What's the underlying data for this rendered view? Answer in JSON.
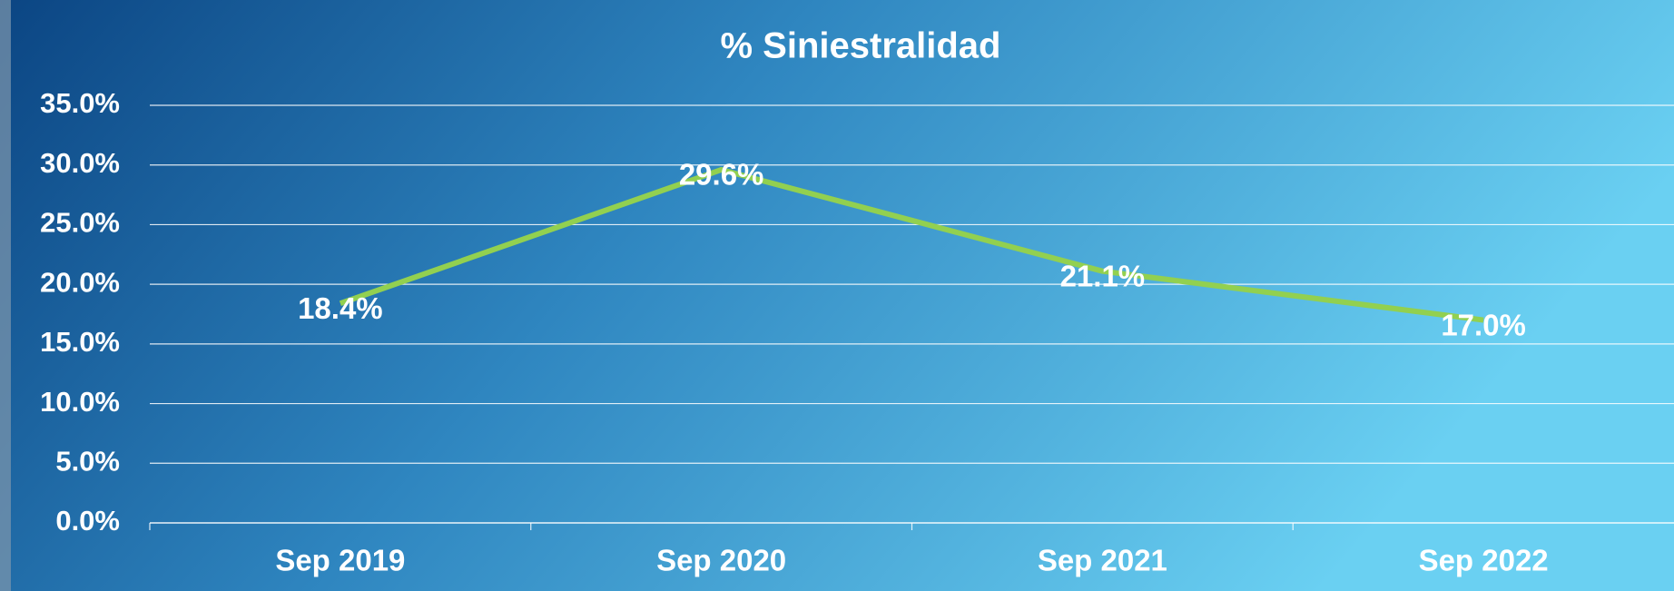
{
  "chart_data": {
    "type": "line",
    "title": "% Siniestralidad",
    "categories": [
      "Sep 2019",
      "Sep 2020",
      "Sep 2021",
      "Sep 2022"
    ],
    "series": [
      {
        "name": "% Siniestralidad",
        "color": "#92d050",
        "values": [
          18.4,
          29.6,
          21.1,
          17.0
        ],
        "value_labels": [
          "18.4%",
          "29.6%",
          "21.1%",
          "17.0%"
        ]
      }
    ],
    "ylim": [
      0,
      35
    ],
    "yticks": [
      {
        "value": 0,
        "label": "0.0%"
      },
      {
        "value": 5,
        "label": "5.0%"
      },
      {
        "value": 10,
        "label": "10.0%"
      },
      {
        "value": 15,
        "label": "15.0%"
      },
      {
        "value": 20,
        "label": "20.0%"
      },
      {
        "value": 25,
        "label": "25.0%"
      },
      {
        "value": 30,
        "label": "30.0%"
      },
      {
        "value": 35,
        "label": "35.0%"
      }
    ],
    "grid": true
  }
}
